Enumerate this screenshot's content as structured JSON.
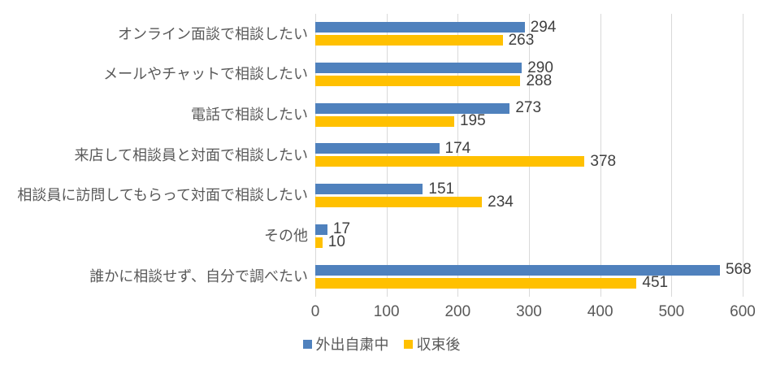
{
  "chart_data": {
    "type": "bar",
    "orientation": "horizontal",
    "title": "",
    "xlabel": "",
    "ylabel": "",
    "categories": [
      "オンライン面談で相談したい",
      "メールやチャットで相談したい",
      "電話で相談したい",
      "来店して相談員と対面で相談したい",
      "相談員に訪問してもらって対面で相談したい",
      "その他",
      "誰かに相談せず、自分で調べたい"
    ],
    "series": [
      {
        "name": "外出自粛中",
        "color": "#4F81BD",
        "values": [
          294,
          290,
          273,
          174,
          151,
          17,
          568
        ]
      },
      {
        "name": "収束後",
        "color": "#FFC000",
        "values": [
          263,
          288,
          195,
          378,
          234,
          10,
          451
        ]
      }
    ],
    "xlim": [
      0,
      600
    ],
    "xticks": [
      0,
      100,
      200,
      300,
      400,
      500,
      600
    ],
    "grid": true,
    "data_labels": true,
    "legend_position": "bottom"
  },
  "colors": {
    "gridline": "#D9D9D9",
    "axis_text": "#595959",
    "value_text": "#404040",
    "background": "#FFFFFF"
  }
}
